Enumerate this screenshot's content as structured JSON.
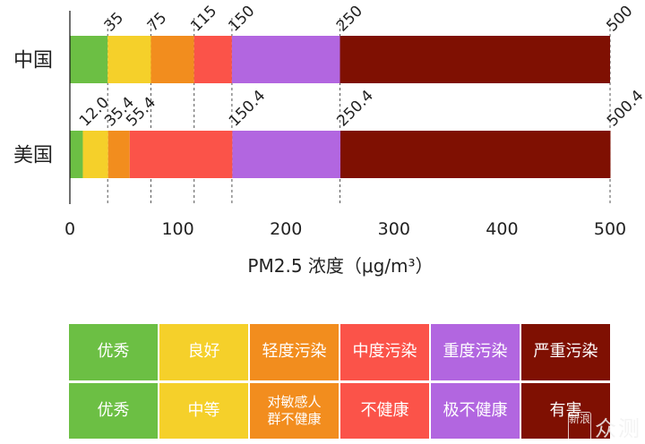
{
  "chart_data": {
    "type": "bar",
    "orientation": "horizontal-stacked",
    "xlabel": "PM2.5 浓度（μg/m³）",
    "xlim": [
      0,
      500
    ],
    "xticks": [
      "0",
      "100",
      "200",
      "300",
      "400",
      "500"
    ],
    "grid": "dashed vertical",
    "categories": [
      "中国",
      "美国"
    ],
    "rows": [
      {
        "category": "中国",
        "breakpoints": [
          0,
          35,
          75,
          115,
          150,
          250,
          500
        ],
        "labels": [
          "35",
          "75",
          "115",
          "150",
          "250",
          "500"
        ]
      },
      {
        "category": "美国",
        "breakpoints": [
          0,
          12.0,
          35.4,
          55.4,
          150.4,
          250.4,
          500.4
        ],
        "labels": [
          "12.0",
          "35.4",
          "55.4",
          "150.4",
          "250.4",
          "500.4"
        ]
      }
    ],
    "colors": [
      "#6cbf44",
      "#f5d02a",
      "#f28d1e",
      "#fb5349",
      "#b266e0",
      "#7f1002"
    ]
  },
  "legend": {
    "china_levels": [
      "优秀",
      "良好",
      "轻度污染",
      "中度污染",
      "重度污染",
      "严重污染"
    ],
    "us_levels": [
      "优秀",
      "中等",
      "对敏感人群不健康",
      "不健康",
      "极不健康",
      "有害"
    ]
  },
  "watermark": {
    "logo": "新浪",
    "text": "众测"
  }
}
